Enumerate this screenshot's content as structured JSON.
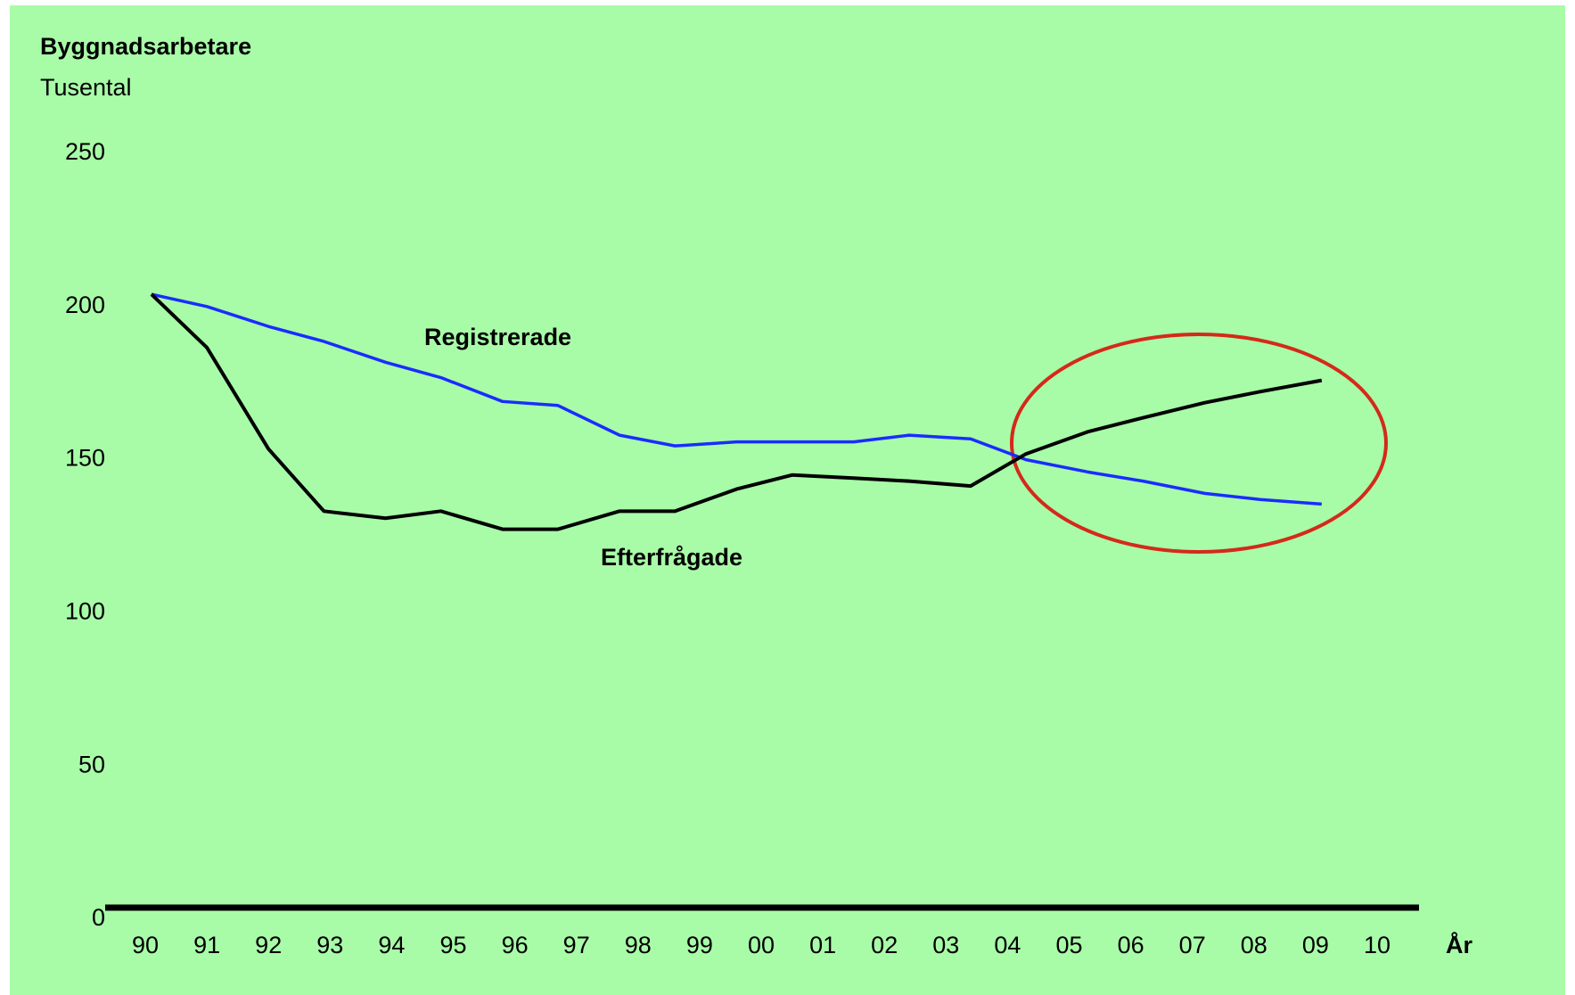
{
  "chart_data": {
    "type": "line",
    "title": "Byggnadsarbetare",
    "subtitle": "Tusental",
    "x_label": "År",
    "x": [
      1990.1,
      1991.0,
      1992.0,
      1992.9,
      1993.9,
      1994.8,
      1995.8,
      1996.7,
      1997.7,
      1998.6,
      1999.6,
      2000.5,
      2001.5,
      2002.4,
      2003.4,
      2004.3,
      2005.3,
      2006.2,
      2007.2,
      2008.1,
      2009.1
    ],
    "series": [
      {
        "name": "Registrerade",
        "color": "#1a2cff",
        "values": [
          204,
          200,
          193.5,
          188.6,
          181.8,
          176.8,
          169,
          167.7,
          158,
          154.5,
          155.8,
          155.8,
          155.8,
          158,
          156.8,
          150,
          146,
          143,
          139,
          137,
          135.5
        ]
      },
      {
        "name": "Efterfrågade",
        "color": "#000000",
        "values": [
          204,
          186.6,
          153.5,
          133.2,
          130.9,
          133.2,
          127.3,
          127.3,
          133.2,
          133.2,
          140.4,
          145,
          144,
          143,
          141.4,
          151.9,
          159.1,
          163.7,
          168.6,
          172.2,
          175.9
        ]
      }
    ],
    "xlim": [
      1990,
      2010
    ],
    "xticks": [
      {
        "value": 1990,
        "label": "90"
      },
      {
        "value": 1991,
        "label": "91"
      },
      {
        "value": 1992,
        "label": "92"
      },
      {
        "value": 1993,
        "label": "93"
      },
      {
        "value": 1994,
        "label": "94"
      },
      {
        "value": 1995,
        "label": "95"
      },
      {
        "value": 1996,
        "label": "96"
      },
      {
        "value": 1997,
        "label": "97"
      },
      {
        "value": 1998,
        "label": "98"
      },
      {
        "value": 1999,
        "label": "99"
      },
      {
        "value": 2000,
        "label": "00"
      },
      {
        "value": 2001,
        "label": "01"
      },
      {
        "value": 2002,
        "label": "02"
      },
      {
        "value": 2003,
        "label": "03"
      },
      {
        "value": 2004,
        "label": "04"
      },
      {
        "value": 2005,
        "label": "05"
      },
      {
        "value": 2006,
        "label": "06"
      },
      {
        "value": 2007,
        "label": "07"
      },
      {
        "value": 2008,
        "label": "08"
      },
      {
        "value": 2009,
        "label": "09"
      },
      {
        "value": 2010,
        "label": "10"
      }
    ],
    "ylim": [
      0,
      250
    ],
    "yticks": [
      0,
      50,
      100,
      150,
      200,
      250
    ],
    "grid": false
  }
}
